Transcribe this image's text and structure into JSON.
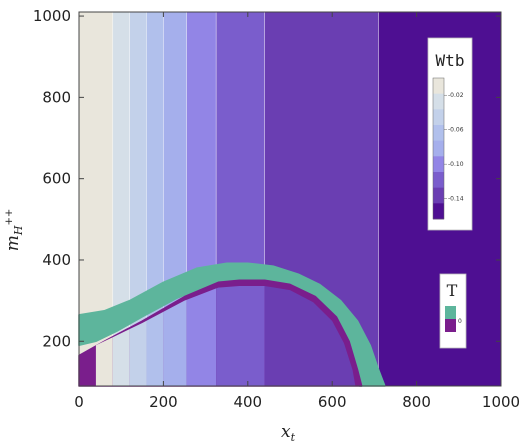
{
  "chart_data": {
    "type": "heatmap",
    "xlabel": "x",
    "xlabel_sub": "t",
    "ylabel": "m",
    "ylabel_sub": "H",
    "ylabel_sup": "++",
    "xlim": [
      0,
      1000
    ],
    "ylim": [
      90,
      1010
    ],
    "x_ticks": [
      0,
      200,
      400,
      600,
      800,
      1000
    ],
    "y_ticks": [
      200,
      400,
      600,
      800,
      1000
    ],
    "bands": [
      {
        "x_from": 0,
        "x_to": 80,
        "color": "#e9e6dc"
      },
      {
        "x_from": 80,
        "x_to": 120,
        "color": "#d5dfe8"
      },
      {
        "x_from": 120,
        "x_to": 160,
        "color": "#c3d1ea"
      },
      {
        "x_from": 160,
        "x_to": 200,
        "color": "#b1c0ec"
      },
      {
        "x_from": 200,
        "x_to": 255,
        "color": "#a5afec"
      },
      {
        "x_from": 255,
        "x_to": 325,
        "color": "#9285e6"
      },
      {
        "x_from": 325,
        "x_to": 440,
        "color": "#7a5dcc"
      },
      {
        "x_from": 440,
        "x_to": 710,
        "color": "#6a3eb2"
      },
      {
        "x_from": 710,
        "x_to": 1000,
        "color": "#4e0f92"
      }
    ],
    "contour_color": "#ffffff",
    "region_T_zero_inner": {
      "color": "#7a1e8c",
      "boundary_points": [
        [
          0,
          165
        ],
        [
          60,
          200
        ],
        [
          150,
          250
        ],
        [
          250,
          310
        ],
        [
          330,
          345
        ],
        [
          380,
          350
        ],
        [
          440,
          350
        ],
        [
          500,
          340
        ],
        [
          560,
          310
        ],
        [
          610,
          260
        ],
        [
          640,
          200
        ],
        [
          660,
          130
        ],
        [
          670,
          90
        ],
        [
          0,
          90
        ]
      ]
    },
    "region_T_zero_outer": {
      "color": "#5db59c",
      "outer_boundary": [
        [
          0,
          265
        ],
        [
          60,
          275
        ],
        [
          120,
          300
        ],
        [
          200,
          345
        ],
        [
          280,
          380
        ],
        [
          350,
          392
        ],
        [
          400,
          392
        ],
        [
          460,
          385
        ],
        [
          520,
          365
        ],
        [
          570,
          340
        ],
        [
          620,
          300
        ],
        [
          660,
          250
        ],
        [
          690,
          190
        ],
        [
          710,
          130
        ],
        [
          725,
          90
        ]
      ],
      "inner_boundary": [
        [
          665,
          90
        ],
        [
          650,
          150
        ],
        [
          625,
          220
        ],
        [
          590,
          280
        ],
        [
          540,
          320
        ],
        [
          480,
          340
        ],
        [
          420,
          345
        ],
        [
          360,
          345
        ],
        [
          300,
          335
        ],
        [
          230,
          305
        ],
        [
          150,
          260
        ],
        [
          90,
          225
        ],
        [
          40,
          200
        ],
        [
          0,
          190
        ]
      ]
    },
    "legend_wtb": {
      "title": "Wtb",
      "ticks": [
        "-0.02",
        "-0.06",
        "-0.10",
        "-0.14"
      ],
      "colors": [
        "#e9e6dc",
        "#d5dfe8",
        "#c3d1ea",
        "#b1c0ec",
        "#a5afec",
        "#9285e6",
        "#7a5dcc",
        "#6a3eb2",
        "#4e0f92"
      ]
    },
    "legend_t": {
      "title": "T",
      "ticks": [
        "0"
      ],
      "colors": [
        "#5db59c",
        "#7a1e8c"
      ]
    }
  }
}
